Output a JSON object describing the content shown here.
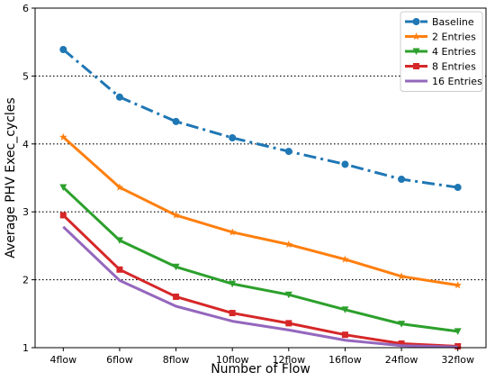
{
  "chart_data": {
    "type": "line",
    "title": "",
    "xlabel": "Number of Flow",
    "ylabel": "Average PHV Exec_cycles",
    "categories": [
      "4flow",
      "6flow",
      "8flow",
      "10flow",
      "12flow",
      "16flow",
      "24flow",
      "32flow"
    ],
    "ylim": [
      1,
      6
    ],
    "yticks": [
      1,
      2,
      3,
      4,
      5,
      6
    ],
    "grid": "horizontal dotted at 2, 3, 4, 5",
    "legend_position": "top-right",
    "series": [
      {
        "name": "Baseline",
        "color": "#1f77b4",
        "marker": "circle",
        "linestyle": "dashdot",
        "values": [
          5.39,
          4.69,
          4.33,
          4.09,
          3.89,
          3.7,
          3.48,
          3.36
        ]
      },
      {
        "name": "2 Entries",
        "color": "#ff7f0e",
        "marker": "star",
        "linestyle": "solid",
        "values": [
          4.1,
          3.36,
          2.95,
          2.7,
          2.52,
          2.3,
          2.05,
          1.92
        ]
      },
      {
        "name": "4 Entries",
        "color": "#2ca02c",
        "marker": "triangle-down",
        "linestyle": "solid",
        "values": [
          3.36,
          2.58,
          2.19,
          1.94,
          1.78,
          1.56,
          1.35,
          1.24
        ]
      },
      {
        "name": "8 Entries",
        "color": "#d62728",
        "marker": "square",
        "linestyle": "solid",
        "values": [
          2.95,
          2.15,
          1.75,
          1.51,
          1.36,
          1.19,
          1.06,
          1.02
        ]
      },
      {
        "name": "16 Entries",
        "color": "#9467bd",
        "marker": "none",
        "linestyle": "solid",
        "values": [
          2.78,
          1.99,
          1.61,
          1.39,
          1.26,
          1.11,
          1.03,
          1.01
        ]
      }
    ]
  }
}
